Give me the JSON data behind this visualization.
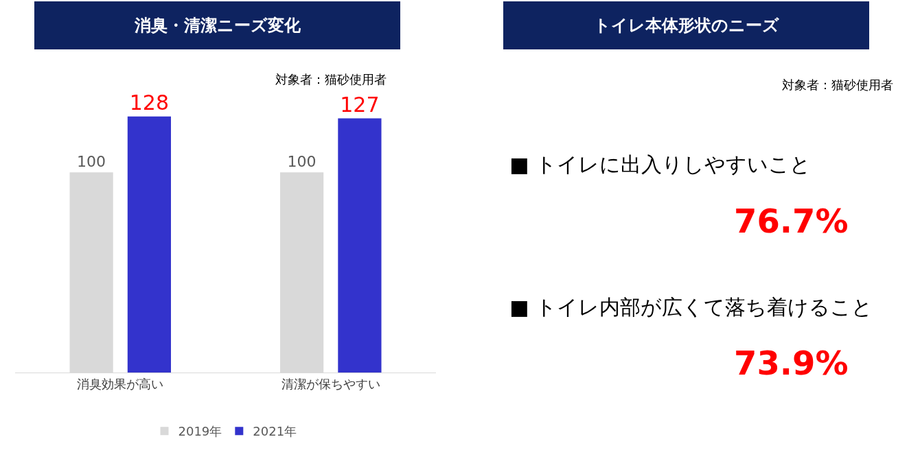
{
  "chart_data": [
    {
      "type": "bar",
      "title": "消臭・清潔ニーズ変化",
      "subtitle": "対象者：猫砂使用者",
      "categories": [
        "消臭効果が高い",
        "清潔が保ちやすい"
      ],
      "series": [
        {
          "name": "2019年",
          "color": "#d9d9d9",
          "values": [
            100,
            100
          ]
        },
        {
          "name": "2021年",
          "color": "#3333cc",
          "values": [
            128,
            127
          ]
        }
      ],
      "data_labels": true,
      "legend": "bottom"
    },
    {
      "type": "other",
      "title": "トイレ本体形状のニーズ",
      "subtitle": "対象者：猫砂使用者",
      "annotations": [
        "■ トイレに出入りしやすいこと",
        "76.7%",
        "■ トイレ内部が広くて落ち着けること",
        "73.9%"
      ]
    }
  ]
}
